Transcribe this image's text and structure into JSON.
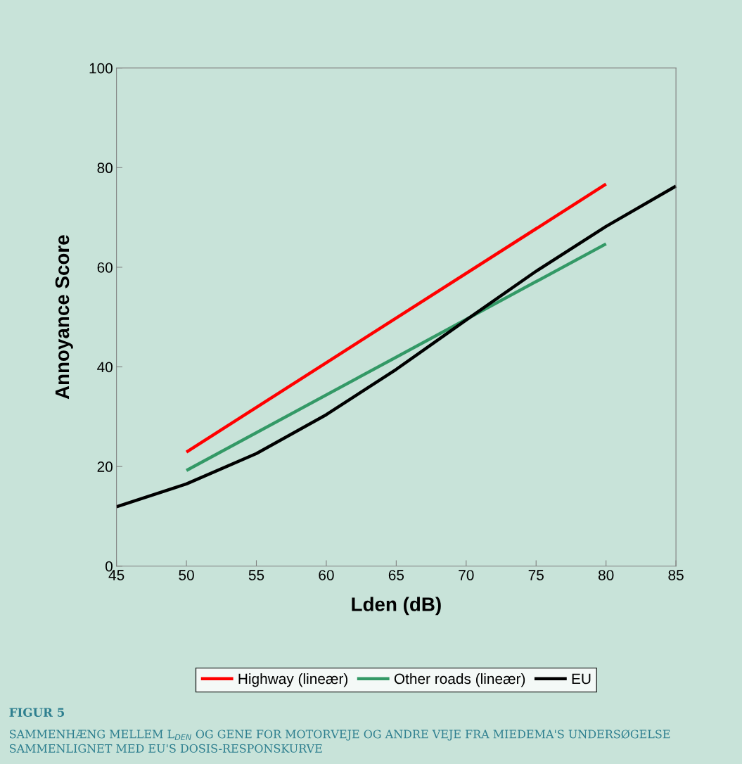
{
  "chart_data": {
    "type": "line",
    "xlabel": "Lden (dB)",
    "ylabel": "Annoyance Score",
    "xlim": [
      45,
      85
    ],
    "xticks": [
      45,
      50,
      55,
      60,
      65,
      70,
      75,
      80,
      85
    ],
    "ylim": [
      0,
      100
    ],
    "yticks": [
      0,
      20,
      40,
      60,
      80,
      100
    ],
    "grid": false,
    "legend": "bottom",
    "marker": "none",
    "line_style": "solid",
    "series": [
      {
        "name": "Highway (lineær)",
        "color": "#ff0000",
        "x": [
          50,
          80
        ],
        "values": [
          22.9,
          76.7
        ]
      },
      {
        "name": "Other roads (lineær)",
        "color": "#339966",
        "x": [
          50,
          80
        ],
        "values": [
          19.2,
          64.7
        ]
      },
      {
        "name": "EU",
        "color": "#000000",
        "x": [
          45,
          50,
          55,
          60,
          65,
          70,
          75,
          80,
          85
        ],
        "values": [
          11.9,
          16.5,
          22.6,
          30.4,
          39.5,
          49.4,
          59.2,
          68.2,
          76.3
        ]
      }
    ],
    "annotations": [
      "FIGUR 5",
      "SAMMENHÆNG MELLEM L$_{DEN}$ OG GENE FOR MOTORVEJE OG ANDRE VEJE FRA MIEDEMA'S UNDERSØGELSE SAMMENLIGNET MED EU'S DOSIS-RESPONSKURVE"
    ]
  }
}
